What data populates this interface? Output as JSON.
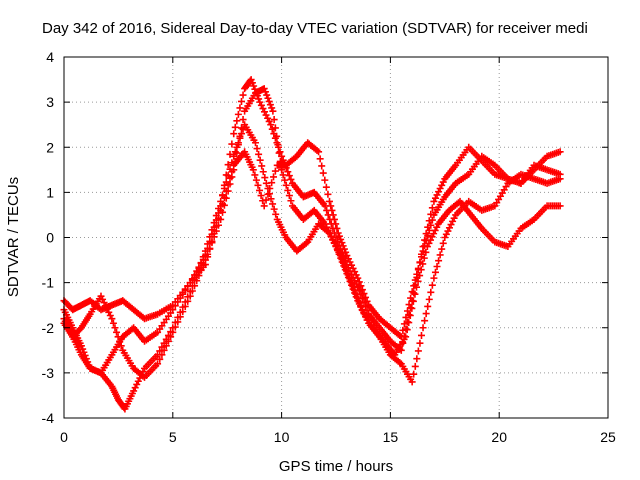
{
  "chart_data": {
    "type": "scatter",
    "title": "Day 342 of 2016, Sidereal Day-to-day VTEC variation (SDTVAR) for receiver medi",
    "xlabel": "GPS time / hours",
    "ylabel": "SDTVAR / TECUs",
    "xlim": [
      0,
      25
    ],
    "ylim": [
      -4,
      4
    ],
    "xticks": [
      0,
      5,
      10,
      15,
      20,
      25
    ],
    "yticks": [
      -4,
      -3,
      -2,
      -1,
      0,
      1,
      2,
      3,
      4
    ],
    "xtick_labels": [
      "0",
      "5",
      "10",
      "15",
      "20",
      "25"
    ],
    "ytick_labels": [
      "-4",
      "-3",
      "-2",
      "-1",
      "0",
      "1",
      "2",
      "3",
      "4"
    ],
    "grid": true,
    "marker": "+",
    "color": "#ff0000",
    "series": [
      {
        "x": [
          0,
          0.4,
          0.8,
          1.2,
          1.7,
          2.2,
          2.7,
          3.2,
          3.7,
          4.3,
          5.0,
          5.8,
          6.5,
          7.2,
          7.8,
          8.3,
          8.7,
          9.2,
          9.8,
          10.2,
          10.7,
          11.2,
          11.7,
          12.2,
          12.6,
          13.0,
          13.5,
          14.0,
          14.5,
          15.0,
          15.5,
          16.0,
          16.5,
          17.0,
          17.5,
          18.0,
          18.6,
          19.2,
          19.8,
          20.4,
          21.0,
          21.6,
          22.2,
          22.8
        ],
        "y": [
          -1.4,
          -1.6,
          -1.5,
          -1.4,
          -1.6,
          -1.5,
          -1.4,
          -1.6,
          -1.8,
          -1.7,
          -1.5,
          -1.0,
          -0.6,
          0.6,
          1.6,
          1.9,
          1.5,
          0.7,
          1.6,
          1.6,
          1.8,
          2.1,
          1.9,
          0.8,
          0.1,
          -0.4,
          -0.9,
          -1.5,
          -1.8,
          -2.0,
          -2.2,
          -1.2,
          -0.3,
          0.5,
          0.9,
          1.2,
          1.4,
          1.8,
          1.6,
          1.3,
          1.2,
          1.5,
          1.8,
          1.9
        ]
      },
      {
        "x": [
          0,
          0.4,
          0.8,
          1.2,
          1.7,
          2.2,
          2.7,
          3.2,
          3.7,
          4.3,
          5.0,
          5.8,
          6.5,
          7.2,
          7.8,
          8.3,
          8.6,
          9.0,
          9.5,
          10.0,
          10.5,
          11.0,
          11.5,
          12.0,
          12.5,
          13.0,
          13.5,
          14.0,
          14.5,
          15.0,
          15.5,
          16.0,
          16.5,
          17.0,
          17.5,
          18.0,
          18.6,
          19.2,
          19.8,
          20.4,
          21.0,
          21.6,
          22.2,
          22.8
        ],
        "y": [
          -1.6,
          -2.0,
          -2.4,
          -2.9,
          -3.0,
          -2.6,
          -2.2,
          -2.0,
          -2.3,
          -2.1,
          -1.6,
          -1.0,
          -0.4,
          0.7,
          2.3,
          3.3,
          3.5,
          3.0,
          2.5,
          1.8,
          1.2,
          0.9,
          1.0,
          0.7,
          0.0,
          -0.6,
          -1.1,
          -1.7,
          -2.0,
          -2.3,
          -2.5,
          -1.4,
          -0.2,
          0.8,
          1.3,
          1.6,
          2.0,
          1.7,
          1.4,
          1.3,
          1.2,
          1.6,
          1.5,
          1.4
        ]
      },
      {
        "x": [
          0,
          0.4,
          0.8,
          1.2,
          1.7,
          2.2,
          2.7,
          3.2,
          3.7,
          4.3,
          5.0,
          5.8,
          6.5,
          7.2,
          7.8,
          8.3,
          8.8,
          9.2,
          9.6,
          10.0,
          10.5,
          11.0,
          11.5,
          12.0,
          12.5,
          13.0,
          13.5,
          14.0,
          14.5,
          15.0,
          15.5,
          16.0,
          16.5,
          17.0,
          17.5,
          18.0,
          18.6,
          19.2,
          19.8,
          20.4,
          21.0,
          21.6,
          22.2,
          22.8
        ],
        "y": [
          -1.9,
          -2.2,
          -2.0,
          -1.7,
          -1.3,
          -1.8,
          -2.5,
          -2.9,
          -3.1,
          -2.8,
          -2.1,
          -1.3,
          -0.5,
          0.4,
          1.5,
          2.8,
          3.2,
          3.3,
          2.8,
          1.5,
          0.7,
          0.4,
          0.6,
          0.3,
          -0.2,
          -0.8,
          -1.4,
          -1.9,
          -2.2,
          -2.6,
          -2.8,
          -3.2,
          -2.0,
          -0.9,
          0.0,
          0.5,
          0.8,
          0.6,
          0.7,
          1.2,
          1.4,
          1.3,
          1.2,
          1.3
        ]
      },
      {
        "x": [
          0,
          0.4,
          0.8,
          1.2,
          1.7,
          2.2,
          2.5,
          2.8,
          3.2,
          3.7,
          4.3,
          5.0,
          5.8,
          6.5,
          7.2,
          7.8,
          8.3,
          8.8,
          9.3,
          9.8,
          10.2,
          10.7,
          11.2,
          11.7,
          12.2,
          12.7,
          13.2,
          13.7,
          14.2,
          14.7,
          15.2,
          15.7,
          16.2,
          16.7,
          17.2,
          17.7,
          18.2,
          18.7,
          19.2,
          19.8,
          20.4,
          21.0,
          21.6,
          22.2,
          22.8
        ],
        "y": [
          -1.8,
          -2.2,
          -2.6,
          -2.9,
          -3.0,
          -3.3,
          -3.6,
          -3.8,
          -3.4,
          -2.9,
          -2.6,
          -2.0,
          -1.2,
          -0.3,
          0.8,
          1.8,
          2.5,
          2.1,
          1.2,
          0.4,
          0.0,
          -0.3,
          -0.1,
          0.3,
          0.1,
          -0.4,
          -1.0,
          -1.6,
          -2.0,
          -2.3,
          -2.6,
          -2.2,
          -1.1,
          -0.2,
          0.3,
          0.6,
          0.8,
          0.5,
          0.2,
          -0.1,
          -0.2,
          0.2,
          0.4,
          0.7,
          0.7
        ]
      }
    ]
  }
}
